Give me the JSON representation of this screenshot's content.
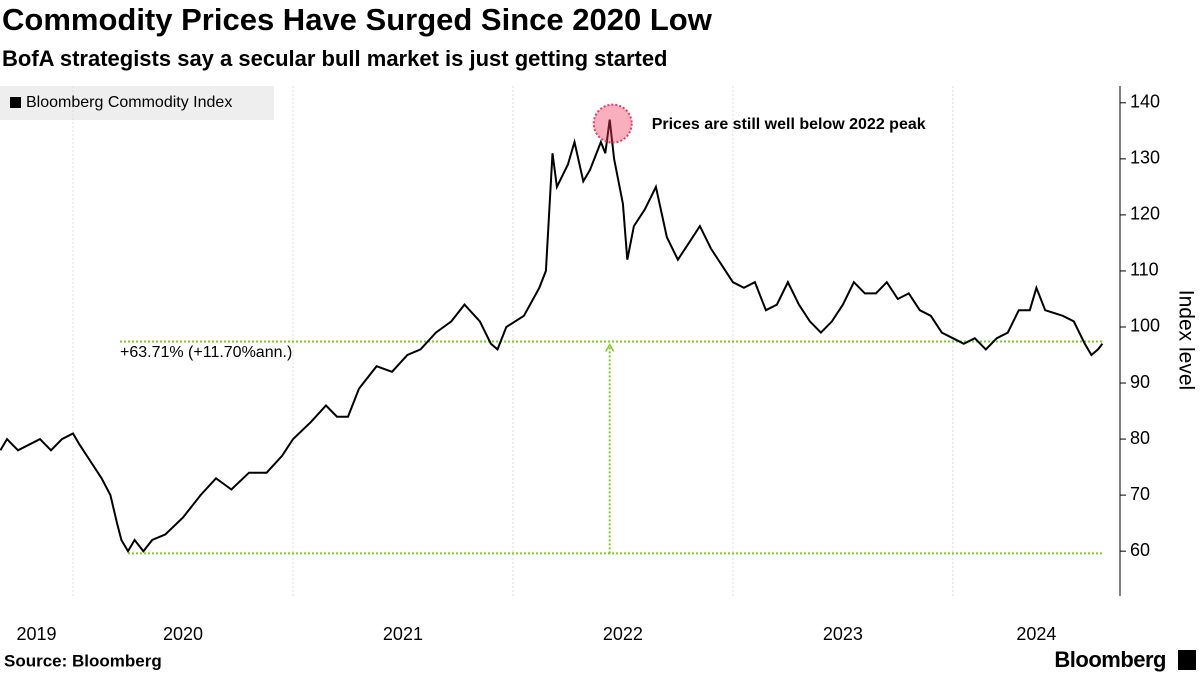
{
  "chart_data": {
    "type": "line",
    "title": "Commodity Prices Have Surged Since 2020 Low",
    "subtitle": "BofA strategists say a secular bull market is just getting started",
    "y_axis_label": "Index level",
    "source": "Source: Bloomberg",
    "brand": "Bloomberg",
    "annotations": [
      "+63.71% (+11.70%ann.)",
      "Prices are still well below 2022 peak"
    ],
    "reference_lines": [
      59.6,
      97.4
    ],
    "reference_color": "#7ccc1c",
    "highlight_color": "#f0365a",
    "xlim": [
      2019.668,
      2024.76
    ],
    "ylim": [
      52,
      143
    ],
    "xticks": [
      2019,
      2020,
      2021,
      2022,
      2023,
      2024
    ],
    "yticks": [
      60,
      70,
      80,
      90,
      100,
      110,
      120,
      130,
      140
    ],
    "grid": true,
    "legend": "top-left",
    "series": [
      {
        "name": "Bloomberg Commodity Index",
        "color": "#000000",
        "x": [
          2019.67,
          2019.7,
          2019.75,
          2019.8,
          2019.85,
          2019.9,
          2019.95,
          2020.0,
          2020.03,
          2020.08,
          2020.13,
          2020.17,
          2020.2,
          2020.22,
          2020.25,
          2020.28,
          2020.32,
          2020.36,
          2020.42,
          2020.5,
          2020.58,
          2020.65,
          2020.72,
          2020.8,
          2020.88,
          2020.95,
          2021.0,
          2021.08,
          2021.15,
          2021.2,
          2021.25,
          2021.3,
          2021.38,
          2021.45,
          2021.52,
          2021.58,
          2021.65,
          2021.72,
          2021.78,
          2021.85,
          2021.9,
          2021.93,
          2021.97,
          2022.05,
          2022.12,
          2022.15,
          2022.17,
          2022.18,
          2022.2,
          2022.25,
          2022.28,
          2022.32,
          2022.35,
          2022.4,
          2022.42,
          2022.44,
          2022.46,
          2022.5,
          2022.52,
          2022.55,
          2022.6,
          2022.65,
          2022.7,
          2022.75,
          2022.8,
          2022.85,
          2022.9,
          2022.95,
          2023.0,
          2023.05,
          2023.1,
          2023.15,
          2023.2,
          2023.25,
          2023.3,
          2023.35,
          2023.4,
          2023.45,
          2023.5,
          2023.55,
          2023.6,
          2023.65,
          2023.7,
          2023.75,
          2023.8,
          2023.85,
          2023.9,
          2023.95,
          2024.0,
          2024.05,
          2024.1,
          2024.15,
          2024.2,
          2024.25,
          2024.3,
          2024.35,
          2024.38,
          2024.42,
          2024.5,
          2024.55,
          2024.6,
          2024.63,
          2024.66,
          2024.68
        ],
        "values": [
          78,
          80,
          78,
          79,
          80,
          78,
          80,
          81,
          79,
          76,
          73,
          70,
          65,
          62,
          60,
          62,
          60,
          62,
          63,
          66,
          70,
          73,
          71,
          74,
          74,
          77,
          80,
          83,
          86,
          84,
          84,
          89,
          93,
          92,
          95,
          96,
          99,
          101,
          104,
          101,
          97,
          96,
          100,
          102,
          107,
          110,
          124,
          131,
          125,
          129,
          133,
          126,
          128,
          133,
          131,
          137,
          130,
          122,
          112,
          118,
          121,
          125,
          116,
          112,
          115,
          118,
          114,
          111,
          108,
          107,
          108,
          103,
          104,
          108,
          104,
          101,
          99,
          101,
          104,
          108,
          106,
          106,
          108,
          105,
          106,
          103,
          102,
          99,
          98,
          97,
          98,
          96,
          98,
          99,
          103,
          103,
          107,
          103,
          102,
          101,
          97,
          95,
          96,
          97
        ]
      }
    ]
  }
}
